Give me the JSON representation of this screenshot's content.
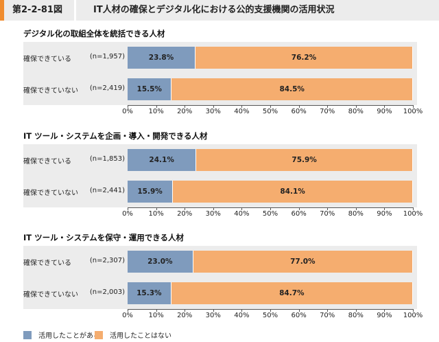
{
  "header": {
    "figure_label": "第2-2-81図",
    "title": "IT人材の確保とデジタル化における公的支援機関の活用状況"
  },
  "colors": {
    "accent": "#f08c2e",
    "series_a": "#7f9bbd",
    "series_b": "#f5ad6f"
  },
  "chart_data": {
    "type": "bar",
    "orientation": "horizontal",
    "stacked": true,
    "xlim": [
      0,
      100
    ],
    "tick_labels": [
      "0%",
      "10%",
      "20%",
      "30%",
      "40%",
      "50%",
      "60%",
      "70%",
      "80%",
      "90%",
      "100%"
    ],
    "legend": {
      "position": "bottom-left",
      "entries": [
        "活用したことがある",
        "活用したことはない"
      ]
    },
    "panels": [
      {
        "title": "デジタル化の取組全体を統括できる人材",
        "rows": [
          {
            "label": "確保できている",
            "n": "(n=1,957)",
            "values": [
              23.8,
              76.2
            ],
            "value_labels": [
              "23.8%",
              "76.2%"
            ]
          },
          {
            "label": "確保できていない",
            "n": "(n=2,419)",
            "values": [
              15.5,
              84.5
            ],
            "value_labels": [
              "15.5%",
              "84.5%"
            ]
          }
        ]
      },
      {
        "title": "IT ツール・システムを企画・導入・開発できる人材",
        "rows": [
          {
            "label": "確保できている",
            "n": "(n=1,853)",
            "values": [
              24.1,
              75.9
            ],
            "value_labels": [
              "24.1%",
              "75.9%"
            ]
          },
          {
            "label": "確保できていない",
            "n": "(n=2,441)",
            "values": [
              15.9,
              84.1
            ],
            "value_labels": [
              "15.9%",
              "84.1%"
            ]
          }
        ]
      },
      {
        "title": "IT ツール・システムを保守・運用できる人材",
        "rows": [
          {
            "label": "確保できている",
            "n": "(n=2,307)",
            "values": [
              23.0,
              77.0
            ],
            "value_labels": [
              "23.0%",
              "77.0%"
            ]
          },
          {
            "label": "確保できていない",
            "n": "(n=2,003)",
            "values": [
              15.3,
              84.7
            ],
            "value_labels": [
              "15.3%",
              "84.7%"
            ]
          }
        ]
      }
    ]
  }
}
